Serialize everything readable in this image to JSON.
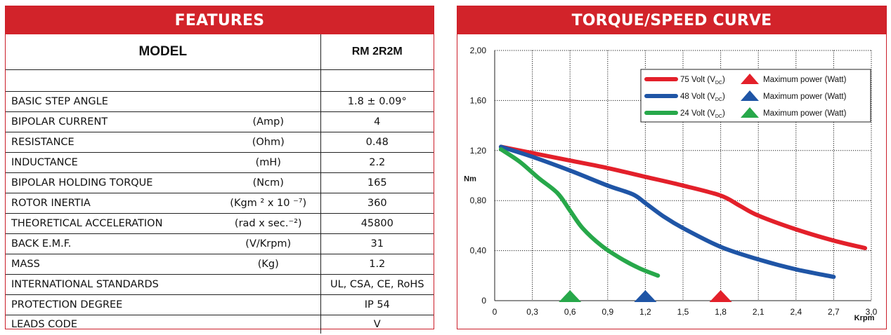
{
  "features": {
    "title": "FEATURES",
    "model_label": "MODEL",
    "model_value": "RM 2R2M",
    "rows": [
      {
        "name": "BASIC STEP ANGLE",
        "unit": "",
        "value": "1.8 ± 0.09°"
      },
      {
        "name": "BIPOLAR CURRENT",
        "unit": "(Amp)",
        "value": "4"
      },
      {
        "name": "RESISTANCE",
        "unit": "(Ohm)",
        "value": "0.48"
      },
      {
        "name": "INDUCTANCE",
        "unit": "(mH)",
        "value": "2.2"
      },
      {
        "name": "BIPOLAR HOLDING TORQUE",
        "unit": "(Ncm)",
        "value": "165"
      },
      {
        "name": "ROTOR INERTIA",
        "unit": "(Kgm ² x 10 ⁻⁷)",
        "value": "360"
      },
      {
        "name": "THEORETICAL ACCELERATION",
        "unit": "(rad x sec.⁻²)",
        "value": "45800"
      },
      {
        "name": "BACK E.M.F.",
        "unit": "(V/Krpm)",
        "value": "31"
      },
      {
        "name": "MASS",
        "unit": "(Kg)",
        "value": "1.2"
      },
      {
        "name": "INTERNATIONAL STANDARDS",
        "unit": "",
        "value": "UL, CSA, CE, RoHS"
      },
      {
        "name": "PROTECTION DEGREE",
        "unit": "",
        "value": "IP 54"
      },
      {
        "name": "LEADS CODE",
        "unit": "",
        "value": "V"
      }
    ]
  },
  "chart_data": {
    "type": "line",
    "title": "TORQUE/SPEED CURVE",
    "xlabel": "Krpm",
    "ylabel": "Nm",
    "xlim": [
      0,
      3.0
    ],
    "ylim": [
      0,
      2.0
    ],
    "xticks": [
      "0",
      "0,3",
      "0,6",
      "0,9",
      "1,2",
      "1,5",
      "1,8",
      "2,1",
      "2,4",
      "2,7",
      "3,0"
    ],
    "yticks": [
      "0",
      "0,40",
      "0,80",
      "1,20",
      "1,60",
      "2,00"
    ],
    "grid": true,
    "legend_position": "top-right",
    "series": [
      {
        "name": "75 Volt (V",
        "name_sub": "DC",
        "name_tail": ")",
        "marker_label": "Maximum power (Watt)",
        "color": "#e3202a",
        "x": [
          0.05,
          0.3,
          0.6,
          0.9,
          1.2,
          1.5,
          1.8,
          1.95,
          2.1,
          2.4,
          2.7,
          2.95
        ],
        "y": [
          1.23,
          1.18,
          1.12,
          1.06,
          0.99,
          0.92,
          0.84,
          0.76,
          0.68,
          0.57,
          0.48,
          0.42
        ],
        "max_power_x": 1.8
      },
      {
        "name": "48 Volt (V",
        "name_sub": "DC",
        "name_tail": ")",
        "marker_label": "Maximum power (Watt)",
        "color": "#1f55a6",
        "x": [
          0.05,
          0.3,
          0.6,
          0.9,
          1.1,
          1.2,
          1.35,
          1.5,
          1.8,
          2.1,
          2.4,
          2.7
        ],
        "y": [
          1.23,
          1.15,
          1.04,
          0.92,
          0.85,
          0.78,
          0.67,
          0.58,
          0.43,
          0.33,
          0.25,
          0.19
        ],
        "max_power_x": 1.2
      },
      {
        "name": "24 Volt (V",
        "name_sub": "DC",
        "name_tail": ")",
        "marker_label": "Maximum power (Watt)",
        "color": "#27a84a",
        "x": [
          0.05,
          0.2,
          0.35,
          0.5,
          0.6,
          0.7,
          0.85,
          1.0,
          1.15,
          1.3
        ],
        "y": [
          1.21,
          1.11,
          0.98,
          0.86,
          0.72,
          0.58,
          0.44,
          0.34,
          0.26,
          0.2
        ],
        "max_power_x": 0.6
      }
    ]
  }
}
